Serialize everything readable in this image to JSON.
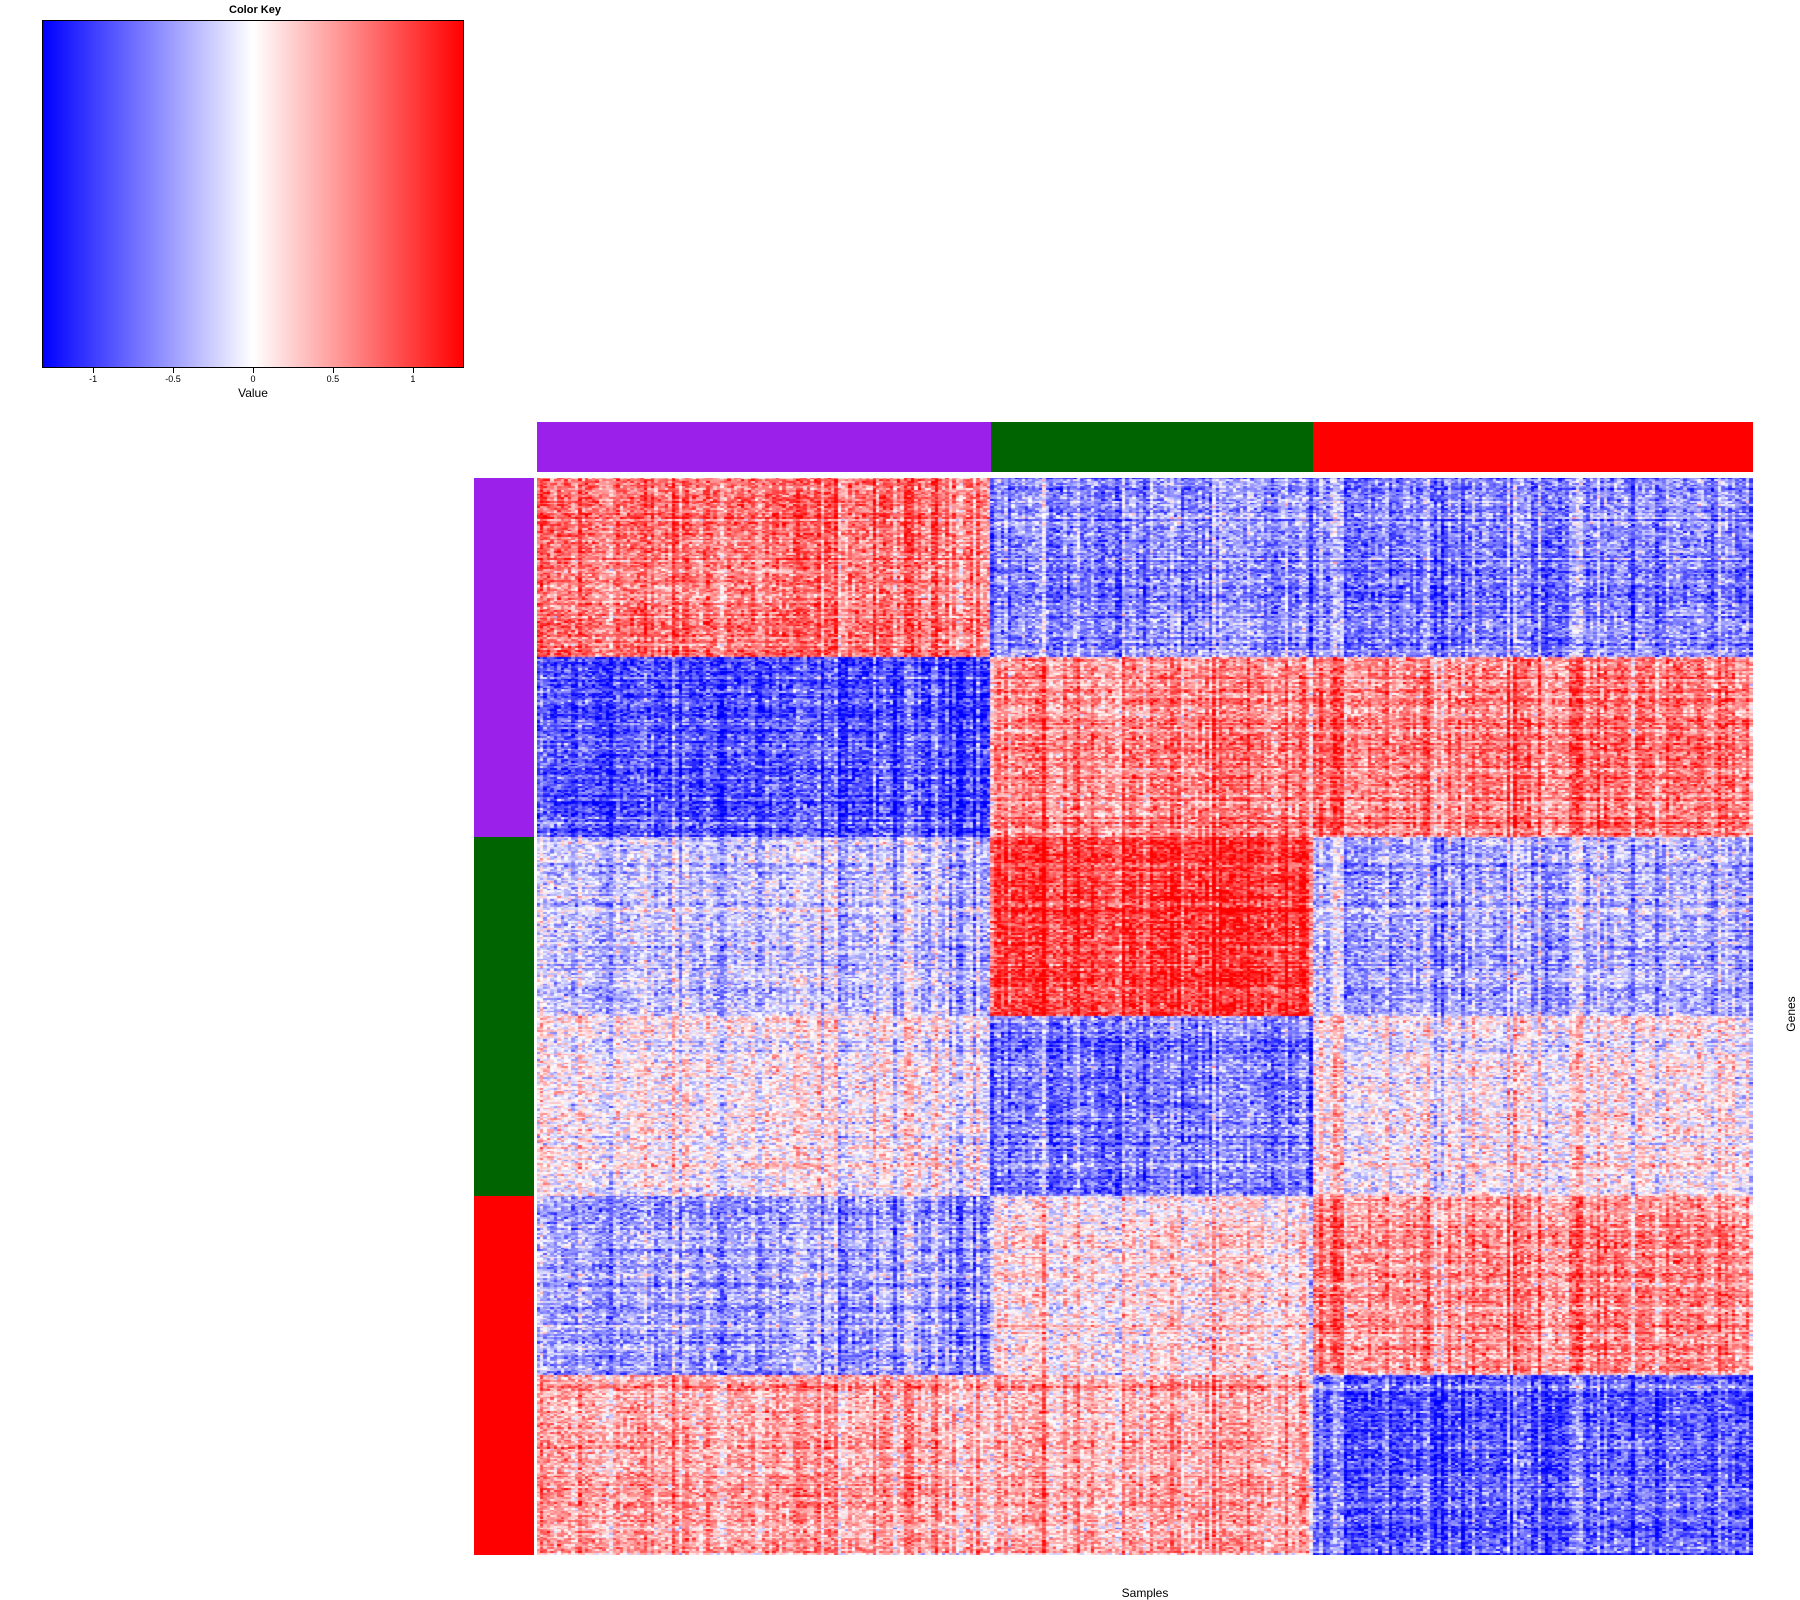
{
  "chart_data": {
    "type": "heatmap",
    "xlabel": "Samples",
    "ylabel": "Genes",
    "color_key": {
      "title": "Color Key",
      "label": "Value",
      "range": [
        -1.32,
        1.32
      ],
      "ticks": [
        -1,
        -0.5,
        0,
        0.5,
        1
      ],
      "tick_labels": [
        "-1",
        "-0.5",
        "0",
        "0.5",
        "1"
      ],
      "low_color": "#0000ff",
      "mid_color": "#ffffff",
      "high_color": "#ff0000"
    },
    "column_groups": [
      {
        "color": "#9b20ea",
        "count": 131
      },
      {
        "color": "#006400",
        "count": 93
      },
      {
        "color": "#ff0000",
        "count": 127
      }
    ],
    "row_groups": [
      {
        "color": "#9b20ea",
        "count": 200
      },
      {
        "color": "#006400",
        "count": 200
      },
      {
        "color": "#ff0000",
        "count": 200
      }
    ],
    "row_blocks": [
      {
        "row_group": 0,
        "count": 100,
        "mean_by_column_group": [
          0.7,
          -0.6,
          -0.6
        ]
      },
      {
        "row_group": 0,
        "count": 100,
        "mean_by_column_group": [
          -0.9,
          0.6,
          0.7
        ]
      },
      {
        "row_group": 1,
        "count": 100,
        "mean_by_column_group": [
          -0.3,
          1.0,
          -0.4
        ]
      },
      {
        "row_group": 1,
        "count": 100,
        "mean_by_column_group": [
          0.0,
          -0.7,
          0.05
        ]
      },
      {
        "row_group": 2,
        "count": 100,
        "mean_by_column_group": [
          -0.5,
          0.1,
          0.6
        ]
      },
      {
        "row_group": 2,
        "count": 100,
        "mean_by_column_group": [
          0.45,
          0.4,
          -0.8
        ]
      }
    ]
  }
}
